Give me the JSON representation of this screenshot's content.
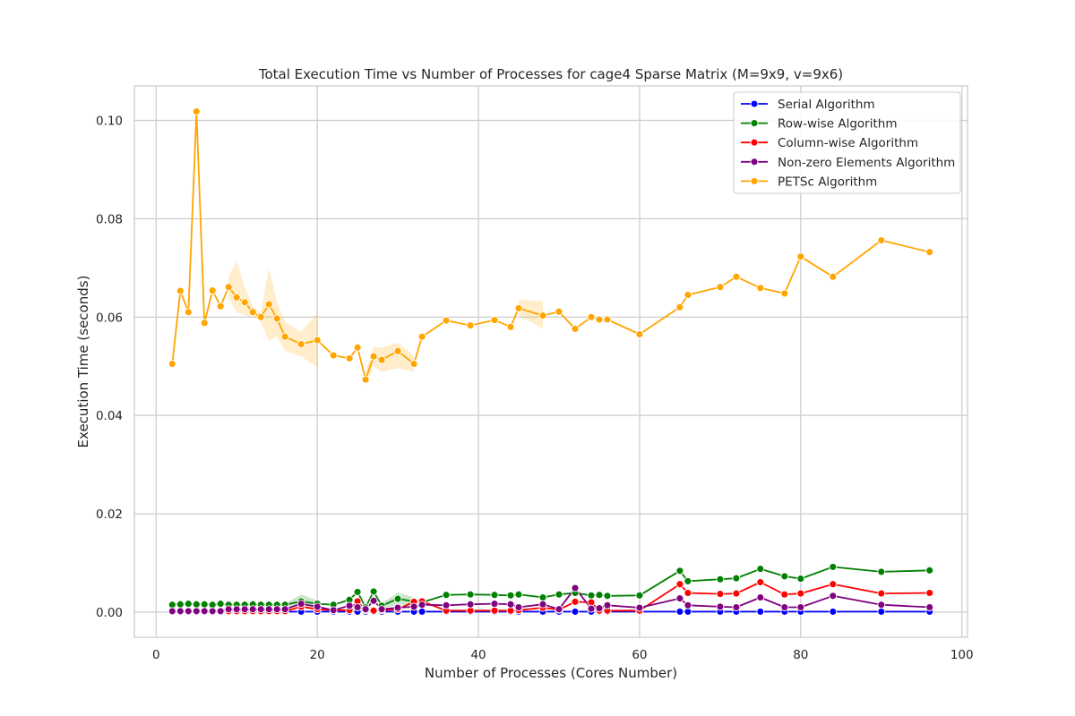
{
  "chart_data": {
    "type": "line",
    "title": "Total Execution Time vs Number of Processes for cage4 Sparse Matrix (M=9x9, v=9x6)",
    "xlabel": "Number of Processes (Cores Number)",
    "ylabel": "Execution Time (seconds)",
    "xlim": [
      -2.7,
      100.7
    ],
    "ylim": [
      -0.0051,
      0.107
    ],
    "xticks": [
      0,
      20,
      40,
      60,
      80,
      100
    ],
    "yticks": [
      0.0,
      0.02,
      0.04,
      0.06,
      0.08,
      0.1
    ],
    "xtick_labels": [
      "0",
      "20",
      "40",
      "60",
      "80",
      "100"
    ],
    "ytick_labels": [
      "0.00",
      "0.02",
      "0.04",
      "0.06",
      "0.08",
      "0.10"
    ],
    "grid": true,
    "legend_position": "top-right",
    "x": [
      2,
      3,
      4,
      5,
      6,
      7,
      8,
      9,
      10,
      11,
      12,
      13,
      14,
      15,
      16,
      18,
      20,
      22,
      24,
      25,
      26,
      27,
      28,
      30,
      32,
      33,
      36,
      39,
      42,
      44,
      45,
      48,
      50,
      52,
      54,
      55,
      56,
      60,
      65,
      66,
      70,
      72,
      75,
      78,
      80,
      84,
      90,
      96
    ],
    "series": [
      {
        "name": "Serial Algorithm",
        "color": "#0000ff",
        "values": [
          0.0001,
          0.0001,
          0.0001,
          0.0001,
          0.0001,
          0.0001,
          0.0001,
          0.0001,
          0.0001,
          0.0001,
          0.0001,
          0.0001,
          0.0001,
          0.0001,
          0.0001,
          0.0001,
          0.0001,
          0.0001,
          0.0001,
          0.0001,
          0.0001,
          0.0001,
          0.0001,
          0.0001,
          0.0001,
          0.0001,
          0.0001,
          0.0001,
          0.0001,
          0.0001,
          0.0001,
          0.0001,
          0.0001,
          0.0001,
          0.0001,
          0.0001,
          0.0001,
          0.0001,
          0.0001,
          0.0001,
          0.0001,
          0.0001,
          0.0001,
          0.0001,
          0.0001,
          0.0001,
          0.0001,
          0.0001
        ]
      },
      {
        "name": "Row-wise Algorithm",
        "color": "#008000",
        "values": [
          0.0015,
          0.0016,
          0.0017,
          0.0016,
          0.0016,
          0.0015,
          0.0017,
          0.0015,
          0.0015,
          0.0015,
          0.0016,
          0.0015,
          0.0015,
          0.0015,
          0.0015,
          0.0022,
          0.0017,
          0.0015,
          0.0025,
          0.0041,
          0.001,
          0.0042,
          0.0013,
          0.0027,
          0.0022,
          0.002,
          0.0035,
          0.0036,
          0.0035,
          0.0034,
          0.0036,
          0.003,
          0.0036,
          0.0039,
          0.0034,
          0.0035,
          0.0033,
          0.0034,
          0.0084,
          0.0063,
          0.0067,
          0.0069,
          0.0088,
          0.0073,
          0.0068,
          0.0092,
          0.0082,
          0.0085
        ]
      },
      {
        "name": "Column-wise Algorithm",
        "color": "#ff0000",
        "values": [
          0.0002,
          0.0002,
          0.0002,
          0.0002,
          0.0002,
          0.0002,
          0.0002,
          0.0002,
          0.0002,
          0.0002,
          0.0002,
          0.0002,
          0.0002,
          0.0002,
          0.0002,
          0.0011,
          0.0006,
          0.0004,
          0.0004,
          0.0022,
          0.0004,
          0.0003,
          0.0004,
          0.0006,
          0.0021,
          0.0022,
          0.0003,
          0.0003,
          0.0003,
          0.0003,
          0.0004,
          0.0009,
          0.0005,
          0.0021,
          0.002,
          0.0003,
          0.0003,
          0.0003,
          0.0057,
          0.0039,
          0.0037,
          0.0038,
          0.0061,
          0.0036,
          0.0038,
          0.0057,
          0.0038,
          0.0039
        ]
      },
      {
        "name": "Non-zero Elements Algorithm",
        "color": "#800080",
        "values": [
          0.0002,
          0.0002,
          0.0002,
          0.0002,
          0.0002,
          0.0002,
          0.0002,
          0.0006,
          0.0006,
          0.0006,
          0.0006,
          0.0006,
          0.0006,
          0.0006,
          0.0006,
          0.0017,
          0.0011,
          0.0004,
          0.0013,
          0.001,
          0.0006,
          0.0023,
          0.0006,
          0.0009,
          0.0011,
          0.0015,
          0.0014,
          0.0016,
          0.0017,
          0.0016,
          0.001,
          0.0016,
          0.0006,
          0.0049,
          0.0007,
          0.0008,
          0.0014,
          0.0009,
          0.0028,
          0.0014,
          0.0011,
          0.001,
          0.003,
          0.001,
          0.001,
          0.0033,
          0.0015,
          0.001
        ]
      },
      {
        "name": "PETSc Algorithm",
        "color": "#ffa500",
        "values": [
          0.0505,
          0.0653,
          0.061,
          0.1018,
          0.0588,
          0.0654,
          0.0622,
          0.0661,
          0.064,
          0.063,
          0.061,
          0.06,
          0.0626,
          0.0597,
          0.056,
          0.0545,
          0.0553,
          0.0522,
          0.0516,
          0.0538,
          0.0473,
          0.052,
          0.0513,
          0.0531,
          0.0505,
          0.056,
          0.0593,
          0.0583,
          0.0594,
          0.058,
          0.0618,
          0.0603,
          0.0611,
          0.0576,
          0.06,
          0.0595,
          0.0595,
          0.0565,
          0.062,
          0.0645,
          0.0661,
          0.0682,
          0.0659,
          0.0648,
          0.0723,
          0.0682,
          0.0756,
          0.0732
        ]
      }
    ],
    "confidence_bands": [
      {
        "series": "PETSc Algorithm",
        "x": [
          9,
          10,
          11,
          12,
          13,
          14,
          15,
          16,
          18,
          20
        ],
        "lower": [
          0.0638,
          0.061,
          0.0604,
          0.06,
          0.059,
          0.0552,
          0.056,
          0.0531,
          0.052,
          0.0498
        ],
        "upper": [
          0.0684,
          0.0713,
          0.066,
          0.0622,
          0.061,
          0.07,
          0.0632,
          0.059,
          0.057,
          0.0608
        ]
      },
      {
        "series": "PETSc Algorithm",
        "x": [
          26,
          27,
          28,
          30,
          32
        ],
        "lower": [
          0.046,
          0.05,
          0.0488,
          0.0496,
          0.0488
        ],
        "upper": [
          0.049,
          0.054,
          0.0538,
          0.0548,
          0.0522
        ]
      },
      {
        "series": "PETSc Algorithm",
        "x": [
          45,
          48
        ],
        "lower": [
          0.0604,
          0.0576
        ],
        "upper": [
          0.0636,
          0.0632
        ]
      },
      {
        "series": "Row-wise Algorithm",
        "x": [
          16,
          18,
          20
        ],
        "lower": [
          0.0013,
          0.001,
          0.001
        ],
        "upper": [
          0.0018,
          0.0036,
          0.0024
        ]
      },
      {
        "series": "Row-wise Algorithm",
        "x": [
          28,
          30,
          32
        ],
        "lower": [
          0.0008,
          0.0015,
          0.0012
        ],
        "upper": [
          0.0018,
          0.004,
          0.003
        ]
      }
    ]
  }
}
